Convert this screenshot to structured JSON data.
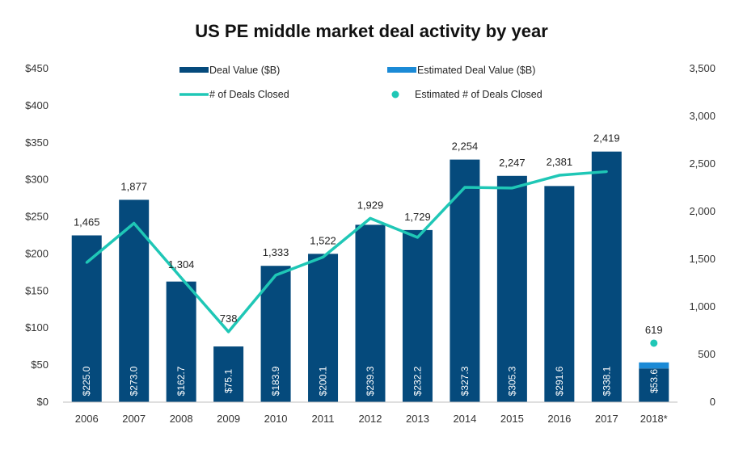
{
  "chart_data": {
    "type": "bar",
    "title": "US PE middle market deal activity by year",
    "categories": [
      "2006",
      "2007",
      "2008",
      "2009",
      "2010",
      "2011",
      "2012",
      "2013",
      "2014",
      "2015",
      "2016",
      "2017",
      "2018*"
    ],
    "series": [
      {
        "name": "Deal Value ($B)",
        "kind": "bar",
        "axis": "left",
        "color": "#054a7c",
        "values": [
          225.0,
          273.0,
          162.7,
          75.1,
          183.9,
          200.1,
          239.3,
          232.2,
          327.3,
          305.3,
          291.6,
          338.1,
          45.5
        ]
      },
      {
        "name": "Estimated Deal Value ($B)",
        "kind": "bar-stacked",
        "axis": "left",
        "color": "#1b8ad6",
        "values": [
          0,
          0,
          0,
          0,
          0,
          0,
          0,
          0,
          0,
          0,
          0,
          0,
          8.1
        ]
      },
      {
        "name": "# of Deals Closed",
        "kind": "line",
        "axis": "right",
        "color": "#1fc7b6",
        "values": [
          1465,
          1877,
          1304,
          738,
          1333,
          1522,
          1929,
          1729,
          2254,
          2247,
          2381,
          2419,
          null
        ]
      },
      {
        "name": "Estimated # of Deals Closed",
        "kind": "point",
        "axis": "right",
        "color": "#1fc7b6",
        "values": [
          null,
          null,
          null,
          null,
          null,
          null,
          null,
          null,
          null,
          null,
          null,
          null,
          619
        ]
      }
    ],
    "bar_labels": [
      "$225.0",
      "$273.0",
      "$162.7",
      "$75.1",
      "$183.9",
      "$200.1",
      "$239.3",
      "$232.2",
      "$327.3",
      "$305.3",
      "$291.6",
      "$338.1",
      "$53.6"
    ],
    "count_labels": [
      "1,465",
      "1,877",
      "1,304",
      "738",
      "1,333",
      "1,522",
      "1,929",
      "1,729",
      "2,254",
      "2,247",
      "2,381",
      "2,419",
      "619"
    ],
    "y_left": {
      "min": 0,
      "max": 450,
      "ticks": [
        "$0",
        "$50",
        "$100",
        "$150",
        "$200",
        "$250",
        "$300",
        "$350",
        "$400",
        "$450"
      ]
    },
    "y_right": {
      "min": 0,
      "max": 3500,
      "ticks": [
        "0",
        "500",
        "1,000",
        "1,500",
        "2,000",
        "2,500",
        "3,000",
        "3,500"
      ]
    },
    "legend": [
      {
        "label": "Deal Value ($B)",
        "marker": "bar",
        "color": "#054a7c"
      },
      {
        "label": "Estimated Deal Value ($B)",
        "marker": "bar",
        "color": "#1b8ad6"
      },
      {
        "label": "# of Deals Closed",
        "marker": "line",
        "color": "#1fc7b6"
      },
      {
        "label": "Estimated # of Deals Closed",
        "marker": "dot",
        "color": "#1fc7b6"
      }
    ],
    "legend_position": "top",
    "grid": false
  }
}
